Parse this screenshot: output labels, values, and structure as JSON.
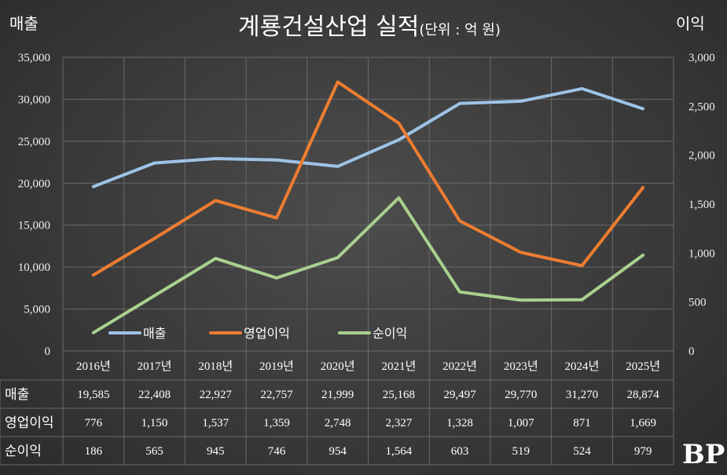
{
  "chart_data": {
    "type": "line",
    "title": "계룡건설산업 실적",
    "title_unit": "(단위 : 억 원)",
    "ylabel": "매출",
    "y2label": "이익",
    "categories": [
      "2016년",
      "2017년",
      "2018년",
      "2019년",
      "2020년",
      "2021년",
      "2022년",
      "2023년",
      "2024년",
      "2025년"
    ],
    "ylim": [
      0,
      35000
    ],
    "y2lim": [
      0,
      3000
    ],
    "yticks": [
      "0",
      "5,000",
      "10,000",
      "15,000",
      "20,000",
      "25,000",
      "30,000",
      "35,000"
    ],
    "y2ticks": [
      "0",
      "500",
      "1,000",
      "1,500",
      "2,000",
      "2,500",
      "3,000"
    ],
    "grid": true,
    "legend_position": "bottom-left",
    "series": [
      {
        "name": "매출",
        "axis": "left",
        "color": "#9dc3e6",
        "values": [
          19585,
          22408,
          22927,
          22757,
          21999,
          25168,
          29497,
          29770,
          31270,
          28874
        ],
        "labels": [
          "19,585",
          "22,408",
          "22,927",
          "22,757",
          "21,999",
          "25,168",
          "29,497",
          "29,770",
          "31,270",
          "28,874"
        ]
      },
      {
        "name": "영업이익",
        "axis": "right",
        "color": "#ed7d31",
        "values": [
          776,
          1150,
          1537,
          1359,
          2748,
          2327,
          1328,
          1007,
          871,
          1669
        ],
        "labels": [
          "776",
          "1,150",
          "1,537",
          "1,359",
          "2,748",
          "2,327",
          "1,328",
          "1,007",
          "871",
          "1,669"
        ]
      },
      {
        "name": "순이익",
        "axis": "right",
        "color": "#a9d18e",
        "values": [
          186,
          565,
          945,
          746,
          954,
          1564,
          603,
          519,
          524,
          979
        ],
        "labels": [
          "186",
          "565",
          "945",
          "746",
          "954",
          "1,564",
          "603",
          "519",
          "524",
          "979"
        ]
      }
    ]
  },
  "logo_text": "BP"
}
